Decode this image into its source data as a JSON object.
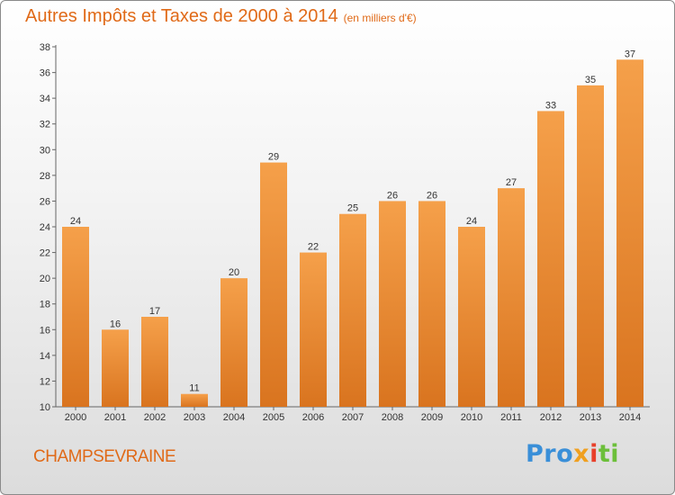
{
  "title": "Autres Impôts et Taxes de 2000 à 2014",
  "unit_note": "(en milliers d'€)",
  "commune": "CHAMPSEVRAINE",
  "brand": {
    "p1": "Pro",
    "p2": "x",
    "p3": "i",
    "p4": "ti"
  },
  "colors": {
    "bar_top": "#f5a04a",
    "bar_bottom": "#d9741f",
    "title": "#e06a18"
  },
  "chart_data": {
    "type": "bar",
    "title": "Autres Impôts et Taxes de 2000 à 2014",
    "categories": [
      "2000",
      "2001",
      "2002",
      "2003",
      "2004",
      "2005",
      "2006",
      "2007",
      "2008",
      "2009",
      "2010",
      "2011",
      "2012",
      "2013",
      "2014"
    ],
    "values": [
      24,
      16,
      17,
      11,
      20,
      29,
      22,
      25,
      26,
      26,
      24,
      27,
      33,
      35,
      37
    ],
    "ylim": [
      10,
      38
    ],
    "yticks": [
      10,
      12,
      14,
      16,
      18,
      20,
      22,
      24,
      26,
      28,
      30,
      32,
      34,
      36,
      38
    ],
    "grid": false,
    "xlabel": "",
    "ylabel": ""
  }
}
